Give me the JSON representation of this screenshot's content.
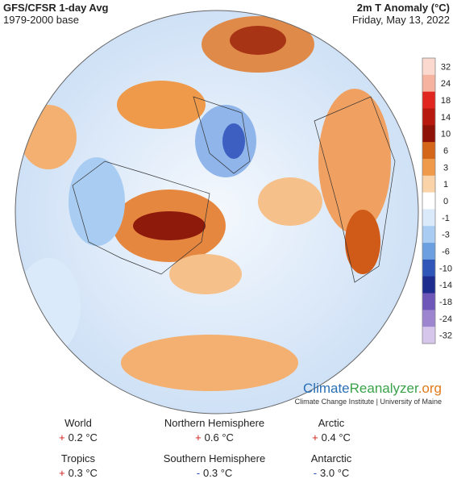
{
  "header": {
    "title": "GFS/CFSR 1-day Avg",
    "base": "1979-2000 base",
    "variable": "2m T Anomaly (°C)",
    "date": "Friday, May 13, 2022"
  },
  "legend": {
    "ticks": [
      32,
      24,
      18,
      14,
      10,
      6,
      3,
      1,
      0,
      -1,
      -3,
      -6,
      -10,
      -14,
      -18,
      -24,
      -32
    ],
    "colors": [
      "#fbd9cf",
      "#f6b39f",
      "#e0261f",
      "#b8190f",
      "#8e1208",
      "#d4661a",
      "#ef9a4a",
      "#fbd3a8",
      "#ffffff",
      "#dbeafa",
      "#a9cdf2",
      "#6c9fe0",
      "#2f55b8",
      "#1f2c8f",
      "#6e57b9",
      "#9d86cf",
      "#d7c6eb"
    ]
  },
  "branding": {
    "site_a": "Climate",
    "site_b": "Reanalyzer",
    "site_c": ".org",
    "institute": "Climate Change Institute | University of Maine"
  },
  "stats": [
    {
      "label": "World",
      "sign": "+",
      "value": "0.2 °C"
    },
    {
      "label": "Northern Hemisphere",
      "sign": "+",
      "value": "0.6 °C"
    },
    {
      "label": "Arctic",
      "sign": "+",
      "value": "0.4 °C"
    },
    {
      "label": "Tropics",
      "sign": "+",
      "value": "0.3 °C"
    },
    {
      "label": "Southern Hemisphere",
      "sign": "-",
      "value": "0.3 °C"
    },
    {
      "label": "Antarctic",
      "sign": "-",
      "value": "3.0 °C"
    }
  ]
}
